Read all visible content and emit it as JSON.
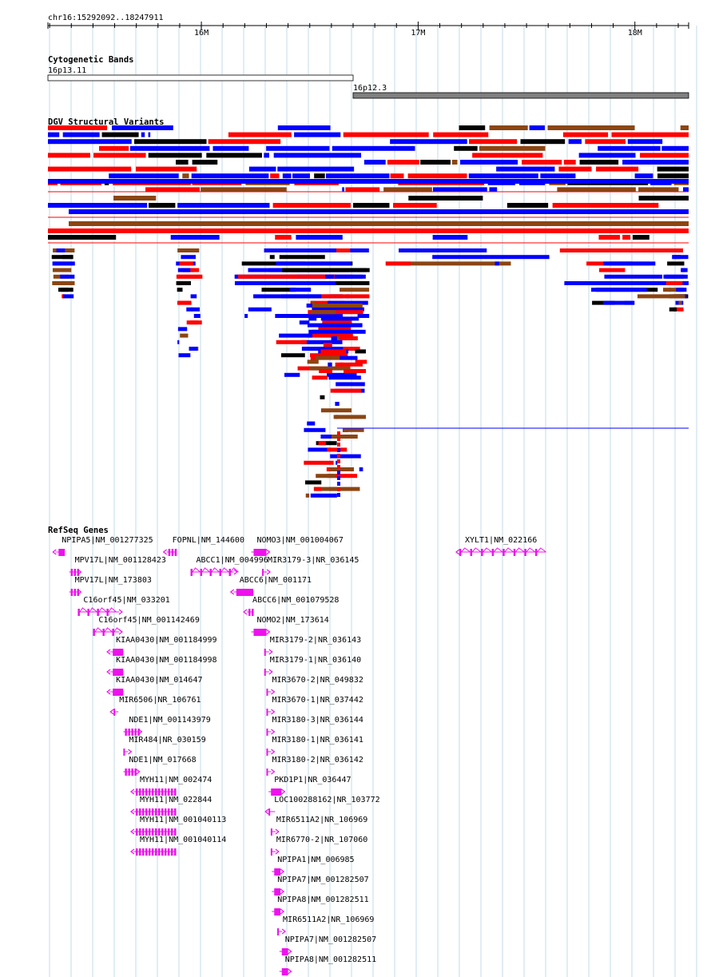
{
  "region": {
    "label": "chr16:15292092..18247911",
    "start": 15292092,
    "end": 18247911,
    "ticks": [
      {
        "label": "16M",
        "pos": 16000000
      },
      {
        "label": "17M",
        "pos": 17000000
      },
      {
        "label": "18M",
        "pos": 18000000
      }
    ]
  },
  "tracks": {
    "cytoband_title": "Cytogenetic Bands",
    "dgv_title": "DGV Structural Variants",
    "refseq_title": "RefSeq Genes"
  },
  "colors": {
    "grid": "#c3dbe8",
    "gene": "#ee11ee",
    "dgv_loss": "#0000ff",
    "dgv_gain": "#ff0000",
    "dgv_both": "#8b4513",
    "dgv_other": "#000000",
    "band_light": "#ffffff",
    "band_dark": "#808080"
  },
  "cytobands": [
    {
      "name": "16p13.11",
      "start": 15292092,
      "end": 16700000,
      "stain": "light"
    },
    {
      "name": "16p12.3",
      "start": 16700000,
      "end": 18247911,
      "stain": "dark"
    }
  ],
  "genes": [
    {
      "label": "NPIPA5|NM_001277325",
      "start": 15330000,
      "end": 15370000,
      "strand": "-",
      "shape": "block",
      "row": 0
    },
    {
      "label": "FOPNL|NM_144600",
      "start": 15840000,
      "end": 15880000,
      "strand": "-",
      "shape": "exons",
      "row": 0
    },
    {
      "label": "NOMO3|NM_001004067",
      "start": 16230000,
      "end": 16300000,
      "strand": "+",
      "shape": "block",
      "row": 0
    },
    {
      "label": "XYLT1|NM_022166",
      "start": 17190000,
      "end": 17590000,
      "strand": "-",
      "shape": "intron",
      "row": 0
    },
    {
      "label": "MPV17L|NM_001128423",
      "start": 15390000,
      "end": 15430000,
      "strand": "+",
      "shape": "exons",
      "row": 1
    },
    {
      "label": "ABCC1|NM_004996",
      "start": 15950000,
      "end": 16150000,
      "strand": "+",
      "shape": "intron",
      "row": 1
    },
    {
      "label": "MIR3179-3|NR_036145",
      "start": 16280000,
      "end": 16290000,
      "strand": "+",
      "shape": "tick",
      "row": 1
    },
    {
      "label": "MPV17L|NM_173803",
      "start": 15390000,
      "end": 15430000,
      "strand": "+",
      "shape": "exons",
      "row": 2
    },
    {
      "label": "ABCC6|NM_001171",
      "start": 16150000,
      "end": 16240000,
      "strand": "-",
      "shape": "block",
      "row": 2
    },
    {
      "label": "C16orf45|NM_033201",
      "start": 15430000,
      "end": 15620000,
      "strand": "+",
      "shape": "intron",
      "row": 3
    },
    {
      "label": "ABCC6|NM_001079528",
      "start": 16210000,
      "end": 16240000,
      "strand": "-",
      "shape": "exons",
      "row": 3
    },
    {
      "label": "C16orf45|NM_001142469",
      "start": 15500000,
      "end": 15620000,
      "strand": "+",
      "shape": "intron",
      "row": 4
    },
    {
      "label": "NOMO2|NM_173614",
      "start": 16230000,
      "end": 16300000,
      "strand": "+",
      "shape": "block",
      "row": 4
    },
    {
      "label": "KIAA0430|NM_001184999",
      "start": 15580000,
      "end": 15640000,
      "strand": "-",
      "shape": "block",
      "row": 5
    },
    {
      "label": "MIR3179-2|NR_036143",
      "start": 16290000,
      "end": 16300000,
      "strand": "+",
      "shape": "tick",
      "row": 5
    },
    {
      "label": "KIAA0430|NM_001184998",
      "start": 15580000,
      "end": 15640000,
      "strand": "-",
      "shape": "block",
      "row": 6
    },
    {
      "label": "MIR3179-1|NR_036140",
      "start": 16290000,
      "end": 16300000,
      "strand": "+",
      "shape": "tick",
      "row": 6
    },
    {
      "label": "KIAA0430|NM_014647",
      "start": 15580000,
      "end": 15640000,
      "strand": "-",
      "shape": "block",
      "row": 7
    },
    {
      "label": "MIR3670-2|NR_049832",
      "start": 16300000,
      "end": 16310000,
      "strand": "+",
      "shape": "tick",
      "row": 7
    },
    {
      "label": "MIR6506|NR_106761",
      "start": 15595000,
      "end": 15605000,
      "strand": "-",
      "shape": "tick",
      "row": 8
    },
    {
      "label": "MIR3670-1|NR_037442",
      "start": 16300000,
      "end": 16310000,
      "strand": "+",
      "shape": "tick",
      "row": 8
    },
    {
      "label": "NDE1|NM_001143979",
      "start": 15640000,
      "end": 15710000,
      "strand": "+",
      "shape": "exons",
      "row": 9
    },
    {
      "label": "MIR3180-3|NR_036144",
      "start": 16300000,
      "end": 16310000,
      "strand": "+",
      "shape": "tick",
      "row": 9
    },
    {
      "label": "MIR484|NR_030159",
      "start": 15640000,
      "end": 15650000,
      "strand": "+",
      "shape": "tick",
      "row": 10
    },
    {
      "label": "MIR3180-1|NR_036141",
      "start": 16300000,
      "end": 16310000,
      "strand": "+",
      "shape": "tick",
      "row": 10
    },
    {
      "label": "NDE1|NM_017668",
      "start": 15640000,
      "end": 15700000,
      "strand": "+",
      "shape": "exons",
      "row": 11
    },
    {
      "label": "MIR3180-2|NR_036142",
      "start": 16300000,
      "end": 16310000,
      "strand": "+",
      "shape": "tick",
      "row": 11
    },
    {
      "label": "MYH11|NM_002474",
      "start": 15690000,
      "end": 15880000,
      "strand": "-",
      "shape": "exons",
      "row": 12
    },
    {
      "label": "PKD1P1|NR_036447",
      "start": 16310000,
      "end": 16370000,
      "strand": "+",
      "shape": "block",
      "row": 12
    },
    {
      "label": "MYH11|NM_022844",
      "start": 15690000,
      "end": 15880000,
      "strand": "-",
      "shape": "exons",
      "row": 13
    },
    {
      "label": "LOC100288162|NR_103772",
      "start": 16310000,
      "end": 16340000,
      "strand": "-",
      "shape": "tick",
      "row": 13
    },
    {
      "label": "MYH11|NM_001040113",
      "start": 15690000,
      "end": 15880000,
      "strand": "-",
      "shape": "exons",
      "row": 14
    },
    {
      "label": "MIR6511A2|NR_106969",
      "start": 16320000,
      "end": 16330000,
      "strand": "+",
      "shape": "tick",
      "row": 14
    },
    {
      "label": "MYH11|NM_001040114",
      "start": 15690000,
      "end": 15880000,
      "strand": "-",
      "shape": "exons",
      "row": 15
    },
    {
      "label": "MIR6770-2|NR_107060",
      "start": 16320000,
      "end": 16330000,
      "strand": "+",
      "shape": "tick",
      "row": 15
    },
    {
      "label": "NPIPA1|NM_006985",
      "start": 16325000,
      "end": 16365000,
      "strand": "+",
      "shape": "block",
      "row": 16
    },
    {
      "label": "NPIPA7|NM_001282507",
      "start": 16325000,
      "end": 16365000,
      "strand": "+",
      "shape": "block",
      "row": 17
    },
    {
      "label": "NPIPA8|NM_001282511",
      "start": 16325000,
      "end": 16365000,
      "strand": "+",
      "shape": "block",
      "row": 18
    },
    {
      "label": "MIR6511A2|NR_106969",
      "start": 16350000,
      "end": 16360000,
      "strand": "+",
      "shape": "tick",
      "row": 19
    },
    {
      "label": "NPIPA7|NM_001282507",
      "start": 16360000,
      "end": 16400000,
      "strand": "+",
      "shape": "block",
      "row": 20
    },
    {
      "label": "NPIPA8|NM_001282511",
      "start": 16360000,
      "end": 16400000,
      "strand": "+",
      "shape": "block",
      "row": 21
    }
  ]
}
